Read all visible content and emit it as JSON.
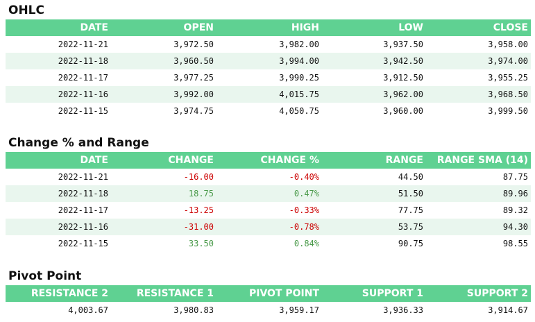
{
  "ohlc": {
    "title": "OHLC",
    "headers": [
      "DATE",
      "OPEN",
      "HIGH",
      "LOW",
      "CLOSE"
    ],
    "rows": [
      [
        "2022-11-21",
        "3,972.50",
        "3,982.00",
        "3,937.50",
        "3,958.00"
      ],
      [
        "2022-11-18",
        "3,960.50",
        "3,994.00",
        "3,942.50",
        "3,974.00"
      ],
      [
        "2022-11-17",
        "3,977.25",
        "3,990.25",
        "3,912.50",
        "3,955.25"
      ],
      [
        "2022-11-16",
        "3,992.00",
        "4,015.75",
        "3,962.00",
        "3,968.50"
      ],
      [
        "2022-11-15",
        "3,974.75",
        "4,050.75",
        "3,960.00",
        "3,999.50"
      ]
    ]
  },
  "change_range": {
    "title": "Change % and Range",
    "headers": [
      "DATE",
      "CHANGE",
      "CHANGE %",
      "RANGE",
      "RANGE SMA (14)"
    ],
    "rows": [
      [
        "2022-11-21",
        "-16.00",
        "-0.40%",
        "44.50",
        "87.75"
      ],
      [
        "2022-11-18",
        "18.75",
        "0.47%",
        "51.50",
        "89.96"
      ],
      [
        "2022-11-17",
        "-13.25",
        "-0.33%",
        "77.75",
        "89.32"
      ],
      [
        "2022-11-16",
        "-31.00",
        "-0.78%",
        "53.75",
        "94.30"
      ],
      [
        "2022-11-15",
        "33.50",
        "0.84%",
        "90.75",
        "98.55"
      ]
    ]
  },
  "pivot": {
    "title": "Pivot Point",
    "headers": [
      "RESISTANCE 2",
      "RESISTANCE 1",
      "PIVOT POINT",
      "SUPPORT 1",
      "SUPPORT 2"
    ],
    "rows": [
      [
        "4,003.67",
        "3,980.83",
        "3,959.17",
        "3,936.33",
        "3,914.67"
      ]
    ]
  },
  "colors": {
    "header_bg": "#5fd192",
    "stripe_bg": "#e9f6ee",
    "negative": "#cc0000",
    "positive": "#4a9a4a"
  }
}
